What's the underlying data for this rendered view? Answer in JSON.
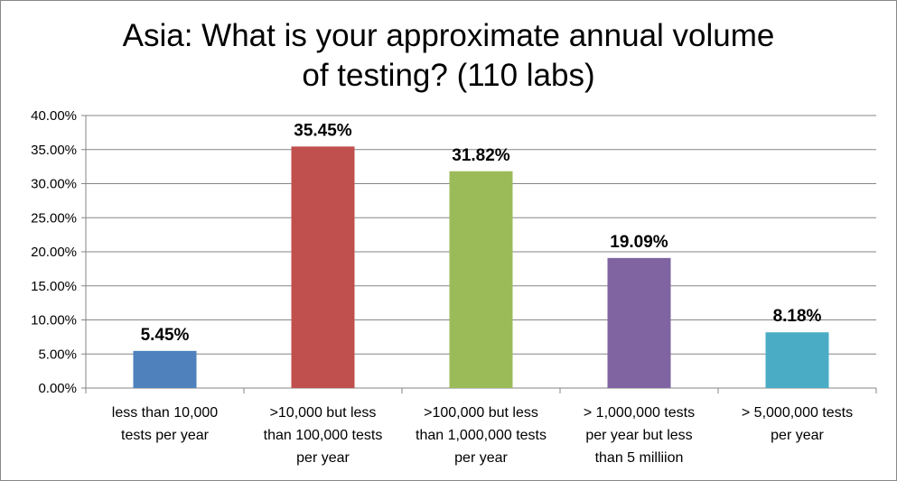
{
  "chart_data": {
    "type": "bar",
    "title_lines": [
      "Asia: What is your approximate annual volume",
      "of testing? (110 labs)"
    ],
    "categories": [
      [
        "less than 10,000",
        "tests per year"
      ],
      [
        ">10,000 but less",
        "than 100,000 tests",
        "per year"
      ],
      [
        ">100,000 but less",
        "than 1,000,000 tests",
        "per year"
      ],
      [
        "> 1,000,000 tests",
        "per year but less",
        "than 5 milliion"
      ],
      [
        "> 5,000,000 tests",
        "per year"
      ]
    ],
    "values": [
      5.45,
      35.45,
      31.82,
      19.09,
      8.18
    ],
    "data_labels": [
      "5.45%",
      "35.45%",
      "31.82%",
      "19.09%",
      "8.18%"
    ],
    "colors": [
      "#4f81bd",
      "#c0504d",
      "#9bbb59",
      "#8064a2",
      "#4bacc6"
    ],
    "ylim": [
      0,
      40
    ],
    "yticks": [
      0,
      5,
      10,
      15,
      20,
      25,
      30,
      35,
      40
    ],
    "ytick_labels": [
      "0.00%",
      "5.00%",
      "10.00%",
      "15.00%",
      "20.00%",
      "25.00%",
      "30.00%",
      "35.00%",
      "40.00%"
    ],
    "grid": true,
    "gridline_color": "#868686",
    "xlabel": "",
    "ylabel": ""
  }
}
